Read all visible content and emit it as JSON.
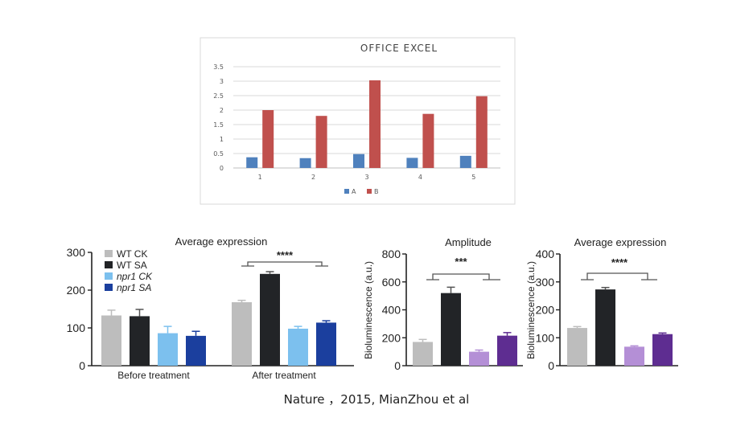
{
  "caption": "Nature ，2015, MianZhou et al",
  "chart_data": [
    {
      "type": "bar",
      "title": "OFFICE EXCEL",
      "categories": [
        "1",
        "2",
        "3",
        "4",
        "5"
      ],
      "series": [
        {
          "name": "A",
          "color": "#4f81bd",
          "values": [
            0.37,
            0.34,
            0.48,
            0.35,
            0.42
          ]
        },
        {
          "name": "B",
          "color": "#c0504d",
          "values": [
            2.0,
            1.8,
            3.03,
            1.87,
            2.48
          ]
        }
      ],
      "ylim": [
        0,
        3.5
      ],
      "yticks": [
        "0",
        "0.5",
        "1",
        "1.5",
        "2",
        "2.5",
        "3",
        "3.5"
      ],
      "grid": true,
      "legend": "bottom"
    },
    {
      "type": "bar",
      "title": "Average expression",
      "categories": [
        "Before treatment",
        "After treatment"
      ],
      "series": [
        {
          "name": "WT CK",
          "color": "#bdbdbd",
          "values": [
            133,
            168
          ],
          "errors": [
            14,
            5
          ]
        },
        {
          "name": "WT SA",
          "color": "#222427",
          "values": [
            131,
            243
          ],
          "errors": [
            18,
            6
          ]
        },
        {
          "name": "npr1 CK",
          "color": "#7cc0ee",
          "values": [
            86,
            98
          ],
          "errors": [
            18,
            6
          ]
        },
        {
          "name": "npr1 SA",
          "color": "#1b3f9e",
          "values": [
            79,
            114
          ],
          "errors": [
            12,
            5
          ]
        }
      ],
      "ylim": [
        0,
        300
      ],
      "yticks": [
        "0",
        "100",
        "200",
        "300"
      ],
      "annotation": "****",
      "legend": "top-left"
    },
    {
      "type": "bar",
      "title": "Amplitude",
      "ylabel": "Bioluminescence (a.u.)",
      "bars": [
        {
          "color": "#bdbdbd",
          "value": 170,
          "error": 18
        },
        {
          "color": "#222427",
          "value": 520,
          "error": 42
        },
        {
          "color": "#b48fd6",
          "value": 100,
          "error": 12
        },
        {
          "color": "#5e2d91",
          "value": 215,
          "error": 22
        }
      ],
      "ylim": [
        0,
        800
      ],
      "yticks": [
        "0",
        "200",
        "400",
        "600",
        "800"
      ],
      "annotation": "***"
    },
    {
      "type": "bar",
      "title": "Average expression",
      "ylabel": "Bioluminescence (a.u.)",
      "bars": [
        {
          "color": "#bdbdbd",
          "value": 135,
          "error": 5
        },
        {
          "color": "#222427",
          "value": 273,
          "error": 7
        },
        {
          "color": "#b48fd6",
          "value": 68,
          "error": 3
        },
        {
          "color": "#5e2d91",
          "value": 113,
          "error": 4
        }
      ],
      "ylim": [
        0,
        400
      ],
      "yticks": [
        "0",
        "100",
        "200",
        "300",
        "400"
      ],
      "annotation": "****"
    }
  ]
}
